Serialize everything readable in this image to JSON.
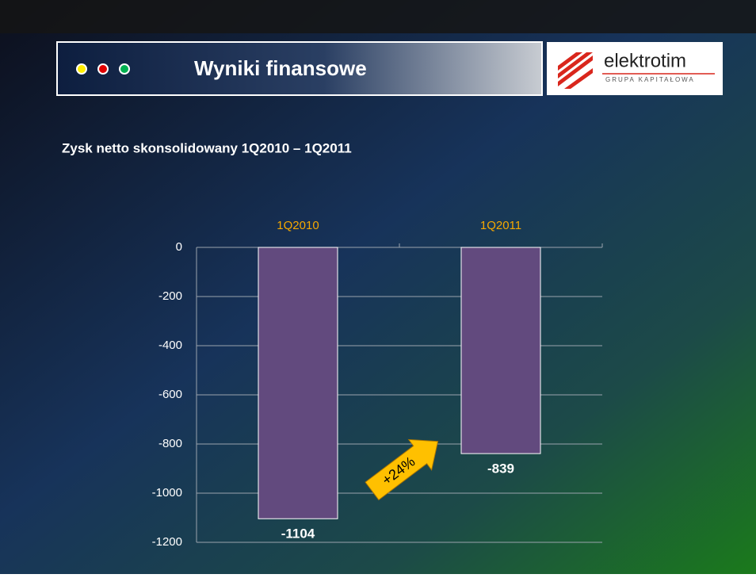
{
  "header": {
    "title": "Wyniki finansowe",
    "logo_name": "elektrotim",
    "logo_subtitle": "GRUPA KAPITAŁOWA"
  },
  "chart_data": {
    "type": "bar",
    "title": "Zysk netto skonsolidowany 1Q2010 – 1Q2011",
    "categories": [
      "1Q2010",
      "1Q2011"
    ],
    "values": [
      -1104,
      -839
    ],
    "color": "#624a7e",
    "ylim": [
      -1200,
      0
    ],
    "yticks": [
      0,
      -200,
      -400,
      -600,
      -800,
      -1000,
      -1200
    ],
    "grid": true,
    "annotation": "+24%"
  }
}
